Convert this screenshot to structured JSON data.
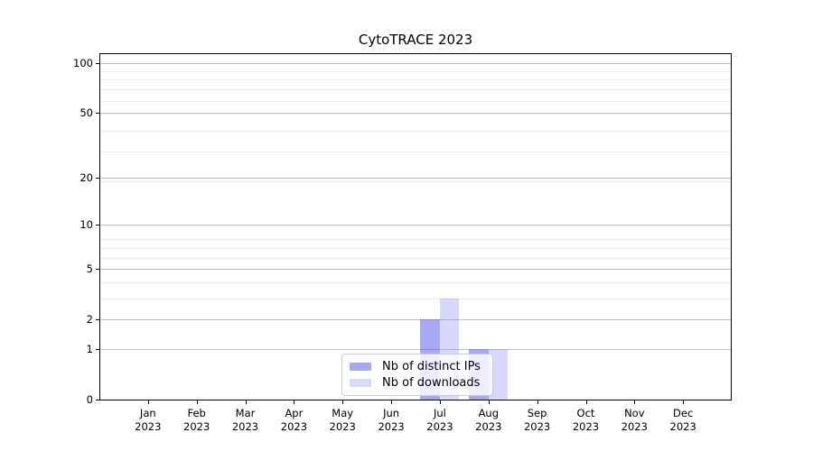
{
  "chart_data": {
    "type": "bar",
    "title": "CytoTRACE 2023",
    "categories": [
      "Jan 2023",
      "Feb 2023",
      "Mar 2023",
      "Apr 2023",
      "May 2023",
      "Jun 2023",
      "Jul 2023",
      "Aug 2023",
      "Sep 2023",
      "Oct 2023",
      "Nov 2023",
      "Dec 2023"
    ],
    "series": [
      {
        "name": "Nb of distinct IPs",
        "values": [
          0,
          0,
          0,
          0,
          0,
          0,
          2,
          1,
          0,
          0,
          0,
          0
        ],
        "bar_color": "rgba(88,88,240,0.52)",
        "swatch_color": "#a8a8f0"
      },
      {
        "name": "Nb of downloads",
        "values": [
          0,
          0,
          0,
          0,
          0,
          0,
          3,
          1,
          0,
          0,
          0,
          0
        ],
        "bar_color": "rgba(88,88,240,0.23)",
        "swatch_color": "#d9d9f8"
      }
    ],
    "yscale": "log1p",
    "ylim": [
      0,
      114
    ],
    "yticks": [
      0,
      1,
      2,
      5,
      10,
      20,
      50,
      100
    ],
    "minor_yticks": [
      3,
      4,
      6,
      7,
      8,
      19,
      29,
      39,
      49,
      59,
      69,
      79,
      89
    ],
    "grid": "horizontal",
    "legend_position": "bottom-center",
    "colors": {
      "grid_major": "#c3c3c3",
      "grid_minor": "#ededed",
      "spine": "#000000",
      "background": "#ffffff"
    }
  }
}
